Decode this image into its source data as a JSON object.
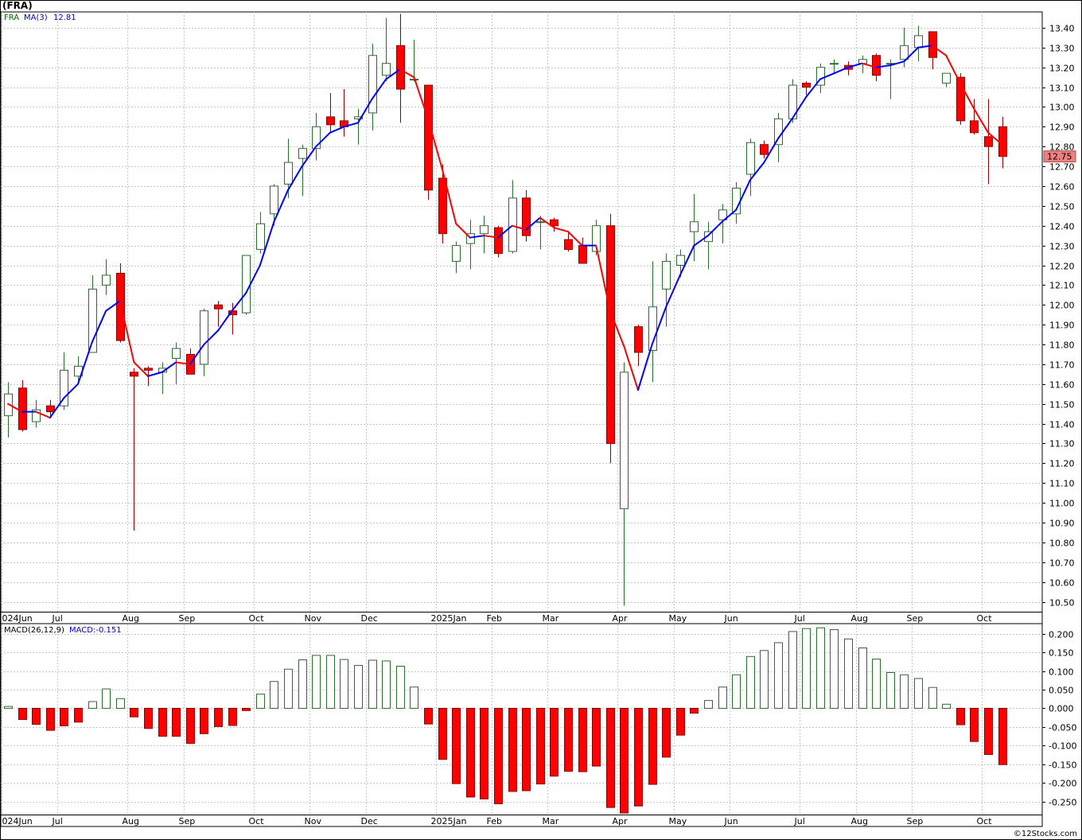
{
  "title": "(FRA)",
  "watermark": "©12Stocks.com",
  "colors": {
    "up": "#ffffff",
    "up_border": "#2e6b2e",
    "down": "#ff0000",
    "down_border": "#8b0000",
    "ma_up": "#0000ff",
    "ma_down": "#ff0000",
    "grid": "#c8c8c8",
    "price_box": "#f08080"
  },
  "chart_data": [
    {
      "type": "candlestick",
      "legend": {
        "symbol": "FRA",
        "ma_label": "MA(3)",
        "ma_value": "12.81"
      },
      "last_price_label": "12.75",
      "ylim": [
        10.45,
        13.48
      ],
      "y_ticks": [
        "13.40",
        "13.30",
        "13.20",
        "13.10",
        "13.00",
        "12.90",
        "12.80",
        "12.70",
        "12.60",
        "12.50",
        "12.40",
        "12.30",
        "12.20",
        "12.10",
        "12.00",
        "11.90",
        "11.80",
        "11.70",
        "11.60",
        "11.50",
        "11.40",
        "11.30",
        "11.20",
        "11.10",
        "11.00",
        "10.90",
        "10.80",
        "10.70",
        "10.60",
        "10.50"
      ],
      "x_labels": [
        {
          "label": "2024Jun",
          "week": 0
        },
        {
          "label": "Jul",
          "week": 4
        },
        {
          "label": "Aug",
          "week": 9
        },
        {
          "label": "Sep",
          "week": 13
        },
        {
          "label": "Oct",
          "week": 18
        },
        {
          "label": "Nov",
          "week": 22
        },
        {
          "label": "Dec",
          "week": 26
        },
        {
          "label": "2025Jan",
          "week": 31
        },
        {
          "label": "Feb",
          "week": 35
        },
        {
          "label": "Mar",
          "week": 39
        },
        {
          "label": "Apr",
          "week": 44
        },
        {
          "label": "May",
          "week": 48
        },
        {
          "label": "Jun",
          "week": 52
        },
        {
          "label": "Jul",
          "week": 57
        },
        {
          "label": "Aug",
          "week": 61
        },
        {
          "label": "Sep",
          "week": 65
        },
        {
          "label": "Oct",
          "week": 70
        }
      ],
      "ohlc": [
        [
          11.44,
          11.61,
          11.33,
          11.55
        ],
        [
          11.58,
          11.62,
          11.36,
          11.37
        ],
        [
          11.41,
          11.52,
          11.38,
          11.47
        ],
        [
          11.49,
          11.52,
          11.44,
          11.46
        ],
        [
          11.49,
          11.76,
          11.47,
          11.67
        ],
        [
          11.64,
          11.74,
          11.6,
          11.69
        ],
        [
          11.76,
          12.15,
          11.76,
          12.08
        ],
        [
          12.1,
          12.23,
          12.05,
          12.15
        ],
        [
          12.16,
          12.21,
          11.81,
          11.82
        ],
        [
          11.66,
          11.68,
          10.86,
          11.64
        ],
        [
          11.68,
          11.69,
          11.59,
          11.67
        ],
        [
          11.66,
          11.71,
          11.55,
          11.68
        ],
        [
          11.73,
          11.81,
          11.6,
          11.78
        ],
        [
          11.75,
          11.78,
          11.65,
          11.65
        ],
        [
          11.7,
          11.98,
          11.64,
          11.97
        ],
        [
          12.0,
          12.02,
          11.89,
          11.98
        ],
        [
          11.97,
          12.01,
          11.85,
          11.95
        ],
        [
          11.96,
          12.25,
          11.95,
          12.25
        ],
        [
          12.28,
          12.47,
          12.26,
          12.41
        ],
        [
          12.46,
          12.61,
          12.4,
          12.6
        ],
        [
          12.61,
          12.84,
          12.54,
          12.72
        ],
        [
          12.74,
          12.81,
          12.55,
          12.79
        ],
        [
          12.79,
          12.97,
          12.73,
          12.9
        ],
        [
          12.95,
          13.07,
          12.87,
          12.91
        ],
        [
          12.93,
          13.09,
          12.85,
          12.9
        ],
        [
          12.94,
          12.99,
          12.81,
          12.95
        ],
        [
          12.97,
          13.32,
          12.88,
          13.26
        ],
        [
          13.16,
          13.45,
          13.13,
          13.22
        ],
        [
          13.31,
          13.47,
          12.92,
          13.09
        ],
        [
          13.14,
          13.34,
          13.13,
          13.14
        ],
        [
          13.11,
          13.11,
          12.53,
          12.58
        ],
        [
          12.64,
          12.71,
          12.31,
          12.36
        ],
        [
          12.22,
          12.32,
          12.16,
          12.3
        ],
        [
          12.31,
          12.43,
          12.18,
          12.36
        ],
        [
          12.36,
          12.45,
          12.26,
          12.4
        ],
        [
          12.39,
          12.4,
          12.24,
          12.26
        ],
        [
          12.27,
          12.63,
          12.26,
          12.54
        ],
        [
          12.54,
          12.58,
          12.32,
          12.35
        ],
        [
          12.42,
          12.45,
          12.28,
          12.42
        ],
        [
          12.43,
          12.44,
          12.37,
          12.4
        ],
        [
          12.33,
          12.37,
          12.27,
          12.28
        ],
        [
          12.3,
          12.34,
          12.21,
          12.21
        ],
        [
          12.27,
          12.43,
          12.25,
          12.4
        ],
        [
          12.4,
          12.46,
          11.2,
          11.3
        ],
        [
          10.97,
          11.71,
          10.48,
          11.66
        ],
        [
          11.89,
          11.9,
          11.69,
          11.76
        ],
        [
          11.77,
          12.22,
          11.61,
          11.99
        ],
        [
          12.08,
          12.26,
          11.89,
          12.22
        ],
        [
          12.2,
          12.28,
          12.14,
          12.25
        ],
        [
          12.37,
          12.56,
          12.22,
          12.42
        ],
        [
          12.32,
          12.42,
          12.18,
          12.37
        ],
        [
          12.43,
          12.51,
          12.31,
          12.48
        ],
        [
          12.46,
          12.62,
          12.41,
          12.59
        ],
        [
          12.66,
          12.84,
          12.55,
          12.82
        ],
        [
          12.81,
          12.83,
          12.74,
          12.76
        ],
        [
          12.81,
          12.97,
          12.72,
          12.94
        ],
        [
          12.94,
          13.14,
          12.92,
          13.11
        ],
        [
          13.12,
          13.13,
          13.06,
          13.1
        ],
        [
          13.11,
          13.22,
          13.07,
          13.2
        ],
        [
          13.22,
          13.24,
          13.17,
          13.22
        ],
        [
          13.21,
          13.23,
          13.16,
          13.19
        ],
        [
          13.22,
          13.26,
          13.17,
          13.24
        ],
        [
          13.26,
          13.27,
          13.13,
          13.16
        ],
        [
          13.22,
          13.24,
          13.04,
          13.22
        ],
        [
          13.24,
          13.4,
          13.2,
          13.31
        ],
        [
          13.3,
          13.41,
          13.23,
          13.36
        ],
        [
          13.38,
          13.38,
          13.19,
          13.25
        ],
        [
          13.12,
          13.17,
          13.1,
          13.17
        ],
        [
          13.15,
          13.17,
          12.91,
          12.93
        ],
        [
          12.93,
          13.04,
          12.86,
          12.87
        ],
        [
          12.85,
          13.04,
          12.61,
          12.8
        ],
        [
          12.9,
          12.95,
          12.69,
          12.75
        ]
      ],
      "ma3": [
        11.5,
        11.46,
        11.46,
        11.43,
        11.53,
        11.6,
        11.81,
        11.97,
        12.02,
        11.71,
        11.64,
        11.66,
        11.71,
        11.7,
        11.8,
        11.87,
        11.97,
        12.06,
        12.2,
        12.42,
        12.58,
        12.7,
        12.8,
        12.87,
        12.9,
        12.92,
        13.04,
        13.14,
        13.19,
        13.15,
        12.94,
        12.69,
        12.41,
        12.34,
        12.35,
        12.34,
        12.4,
        12.38,
        12.44,
        12.39,
        12.37,
        12.3,
        12.3,
        11.97,
        11.79,
        11.57,
        11.8,
        11.99,
        12.15,
        12.3,
        12.35,
        12.42,
        12.48,
        12.63,
        12.72,
        12.84,
        12.94,
        13.05,
        13.14,
        13.17,
        13.2,
        13.22,
        13.2,
        13.21,
        13.23,
        13.3,
        13.31,
        13.26,
        13.12,
        12.99,
        12.87,
        12.81
      ]
    },
    {
      "type": "bar",
      "legend": {
        "name": "MACD(26,12,9)",
        "value_label": "MACD:-0.151"
      },
      "ylim": [
        -0.285,
        0.225
      ],
      "y_ticks": [
        "0.200",
        "0.150",
        "0.100",
        "0.050",
        "0.000",
        "-0.050",
        "-0.100",
        "-0.150",
        "-0.200",
        "-0.250"
      ],
      "x_labels": [
        {
          "label": "2024Jun",
          "week": 0
        },
        {
          "label": "Jul",
          "week": 4
        },
        {
          "label": "Aug",
          "week": 9
        },
        {
          "label": "Sep",
          "week": 13
        },
        {
          "label": "Oct",
          "week": 18
        },
        {
          "label": "Nov",
          "week": 22
        },
        {
          "label": "Dec",
          "week": 26
        },
        {
          "label": "2025Jan",
          "week": 31
        },
        {
          "label": "Feb",
          "week": 35
        },
        {
          "label": "Mar",
          "week": 39
        },
        {
          "label": "Apr",
          "week": 44
        },
        {
          "label": "May",
          "week": 48
        },
        {
          "label": "Jun",
          "week": 52
        },
        {
          "label": "Jul",
          "week": 57
        },
        {
          "label": "Aug",
          "week": 61
        },
        {
          "label": "Sep",
          "week": 65
        },
        {
          "label": "Oct",
          "week": 70
        }
      ],
      "values": [
        0.005,
        -0.03,
        -0.043,
        -0.059,
        -0.047,
        -0.037,
        0.018,
        0.052,
        0.026,
        -0.023,
        -0.054,
        -0.075,
        -0.075,
        -0.094,
        -0.068,
        -0.049,
        -0.046,
        -0.006,
        0.038,
        0.072,
        0.105,
        0.13,
        0.142,
        0.142,
        0.131,
        0.115,
        0.129,
        0.127,
        0.113,
        0.057,
        -0.042,
        -0.137,
        -0.202,
        -0.238,
        -0.243,
        -0.256,
        -0.223,
        -0.221,
        -0.203,
        -0.182,
        -0.169,
        -0.17,
        -0.155,
        -0.266,
        -0.281,
        -0.262,
        -0.204,
        -0.131,
        -0.072,
        -0.013,
        0.021,
        0.057,
        0.09,
        0.139,
        0.155,
        0.176,
        0.206,
        0.214,
        0.216,
        0.211,
        0.186,
        0.162,
        0.132,
        0.096,
        0.09,
        0.08,
        0.056,
        0.011,
        -0.044,
        -0.089,
        -0.124,
        -0.151
      ]
    }
  ]
}
